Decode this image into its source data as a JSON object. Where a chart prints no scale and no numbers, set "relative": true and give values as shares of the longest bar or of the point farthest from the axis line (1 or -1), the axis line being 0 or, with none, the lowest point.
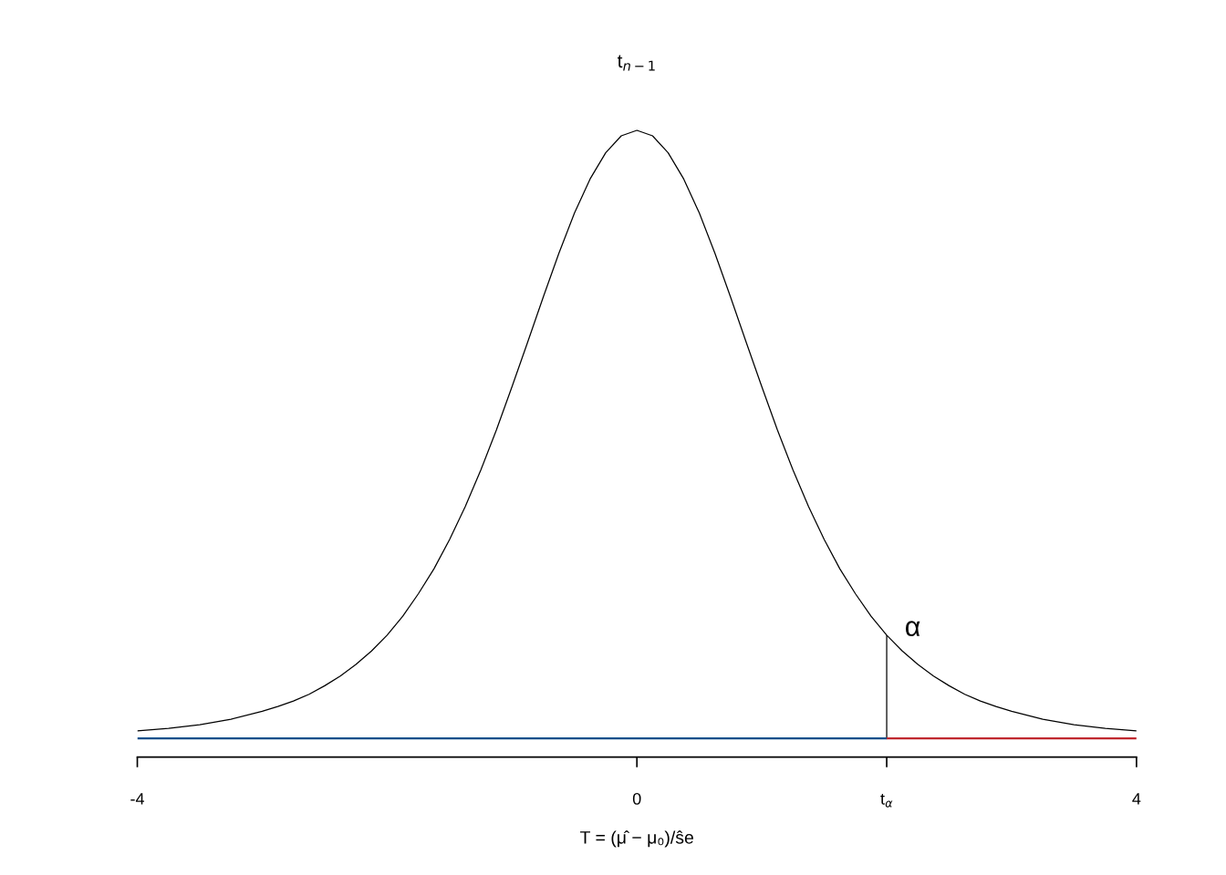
{
  "chart_data": {
    "type": "line",
    "title": "t$_{n−1}$",
    "xlabel": "T = (μ̂ − μ₀)/ŝe",
    "relative": true,
    "xlim": [
      -4,
      4
    ],
    "xticks": [
      -4,
      0,
      {
        "value": 2,
        "label": "t$_{α}$"
      },
      4
    ],
    "tick_labels": "x",
    "grid": false,
    "legend": false,
    "marker": "none",
    "series": [
      {
        "color": "#000000",
        "x": [
          -4,
          -3.75,
          -3.5,
          -3.25,
          -3,
          -2.875,
          -2.75,
          -2.625,
          -2.5,
          -2.375,
          -2.25,
          -2.125,
          -2,
          -1.875,
          -1.75,
          -1.625,
          -1.5,
          -1.375,
          -1.25,
          -1.125,
          -1,
          -0.875,
          -0.75,
          -0.625,
          -0.5,
          -0.375,
          -0.25,
          -0.125,
          0,
          0.125,
          0.25,
          0.375,
          0.5,
          0.625,
          0.75,
          0.875,
          1,
          1.125,
          1.25,
          1.375,
          1.5,
          1.625,
          1.75,
          1.875,
          2,
          2.125,
          2.25,
          2.375,
          2.5,
          2.625,
          2.75,
          2.875,
          3,
          3.25,
          3.5,
          3.75,
          4
        ],
        "values": [
          0.014,
          0.018,
          0.024,
          0.033,
          0.046,
          0.054,
          0.063,
          0.074,
          0.088,
          0.104,
          0.123,
          0.145,
          0.171,
          0.202,
          0.239,
          0.28,
          0.328,
          0.382,
          0.442,
          0.508,
          0.579,
          0.652,
          0.726,
          0.798,
          0.864,
          0.92,
          0.963,
          0.991,
          1,
          0.991,
          0.963,
          0.92,
          0.864,
          0.798,
          0.726,
          0.652,
          0.579,
          0.508,
          0.442,
          0.382,
          0.328,
          0.28,
          0.239,
          0.202,
          0.171,
          0.145,
          0.123,
          0.104,
          0.088,
          0.074,
          0.063,
          0.054,
          0.046,
          0.033,
          0.024,
          0.018,
          0.014
        ]
      },
      {
        "color": "#000000",
        "x": [
          2,
          2
        ],
        "values": [
          0,
          0.171
        ]
      },
      {
        "color": "#0b4f8a",
        "x": [
          -4,
          2
        ],
        "values": [
          0,
          0
        ]
      },
      {
        "color": "#c0282f",
        "x": [
          2,
          4
        ],
        "values": [
          0,
          0
        ]
      }
    ],
    "annotations": [
      "α"
    ]
  }
}
